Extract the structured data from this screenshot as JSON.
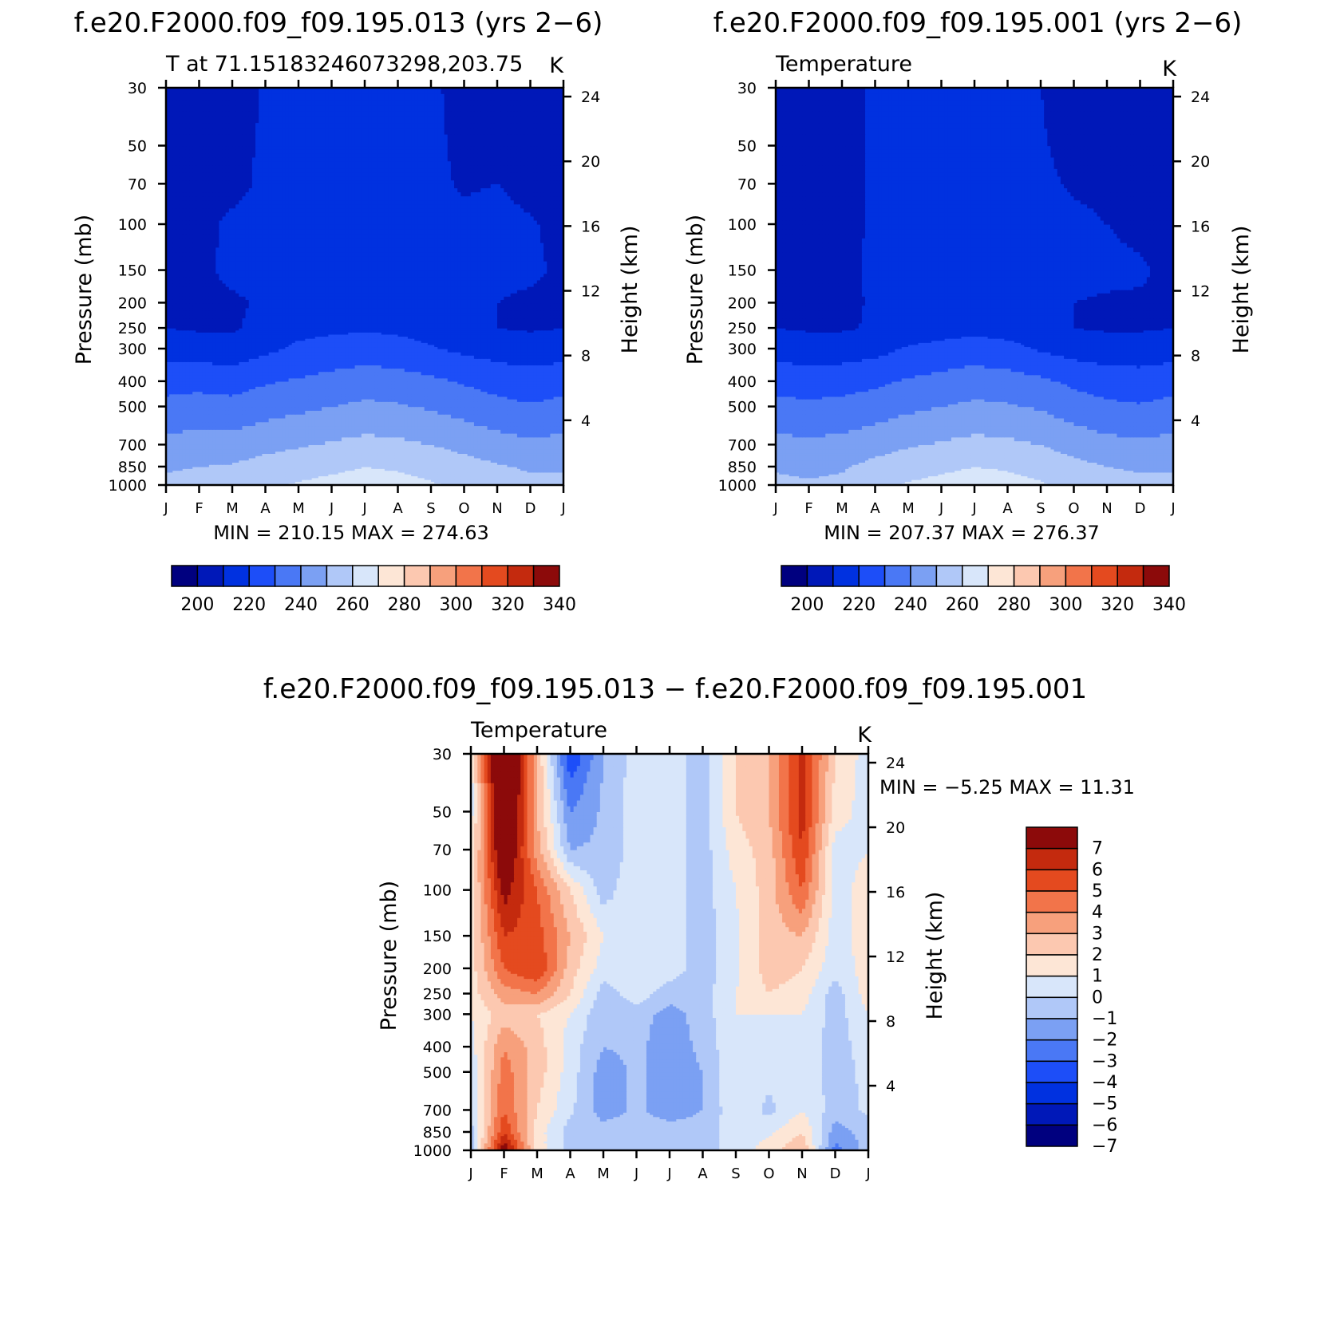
{
  "colors": {
    "abs_scale": [
      "#00007f",
      "#0018b8",
      "#0031e0",
      "#1d4ef8",
      "#4a78f5",
      "#7ba0f3",
      "#b0c8f8",
      "#d8e6fa",
      "#fde6d6",
      "#fcc8b0",
      "#f7a07c",
      "#f2744a",
      "#e44a1f",
      "#c42a0e",
      "#8c0a0a"
    ],
    "diff_scale": [
      "#00007f",
      "#0018b8",
      "#0031e0",
      "#1d4ef8",
      "#4a78f5",
      "#7ba0f3",
      "#b0c8f8",
      "#d8e6fa",
      "#fde6d6",
      "#fcc8b0",
      "#f7a07c",
      "#f2744a",
      "#e44a1f",
      "#c42a0e",
      "#8c0a0a"
    ]
  },
  "panels": {
    "p1": {
      "header": "f.e20.F2000.f09_f09.195.013 (yrs 2−6)",
      "left_label": "T at 71.15183246073298,203.75",
      "right_label": "K",
      "stats": "MIN =  210.15  MAX =  274.63",
      "y_title": "Pressure (mb)",
      "y2_title": "Height (km)"
    },
    "p2": {
      "header": "f.e20.F2000.f09_f09.195.001 (yrs 2−6)",
      "left_label": "Temperature",
      "right_label": "K",
      "stats": "MIN =  207.37  MAX =  276.37",
      "y_title": "Pressure (mb)",
      "y2_title": "Height (km)"
    },
    "p3": {
      "header": "f.e20.F2000.f09_f09.195.013 − f.e20.F2000.f09_f09.195.001",
      "left_label": "Temperature",
      "right_label": "K",
      "stats": "MIN =   −5.25  MAX =   11.31",
      "y_title": "Pressure (mb)",
      "y2_title": "Height (km)"
    }
  },
  "chart_data": [
    {
      "type": "heatmap",
      "title": "f.e20.F2000.f09_f09.195.013 (yrs 2−6)",
      "subtitle": "T at 71.15183246073298,203.75",
      "units": "K",
      "x_tick_labels": [
        "J",
        "F",
        "M",
        "A",
        "M",
        "J",
        "J",
        "A",
        "S",
        "O",
        "N",
        "D",
        "J"
      ],
      "pressure_levels": [
        1000,
        850,
        700,
        500,
        400,
        300,
        250,
        200,
        150,
        100,
        70,
        50,
        30
      ],
      "pressure_tick_labels": [
        "1000",
        "850",
        "700",
        "500",
        "400",
        "300",
        "250",
        "200",
        "150",
        "100",
        "70",
        "50",
        "30"
      ],
      "height_ticks": [
        4,
        8,
        12,
        16,
        20,
        24
      ],
      "contour_levels": [
        200,
        210,
        220,
        230,
        240,
        250,
        260,
        270,
        280,
        290,
        300,
        310,
        320,
        330,
        340
      ],
      "colorbar_labels": [
        "200",
        "220",
        "240",
        "260",
        "280",
        "300",
        "320",
        "340"
      ],
      "min": 210.15,
      "max": 274.63,
      "values": [
        [
          262,
          263,
          264,
          268,
          271,
          273,
          274,
          273,
          271,
          268,
          264,
          262,
          262
        ],
        [
          259,
          260,
          261,
          264,
          266,
          268,
          270,
          269,
          267,
          264,
          261,
          259,
          259
        ],
        [
          253,
          254,
          254,
          257,
          259,
          261,
          263,
          262,
          260,
          257,
          254,
          252,
          253
        ],
        [
          243,
          244,
          243,
          246,
          248,
          250,
          252,
          251,
          249,
          246,
          243,
          241,
          243
        ],
        [
          236,
          237,
          236,
          239,
          241,
          243,
          245,
          244,
          242,
          239,
          236,
          234,
          236
        ],
        [
          226,
          225,
          224,
          228,
          232,
          234,
          235,
          234,
          231,
          228,
          226,
          225,
          226
        ],
        [
          220,
          219,
          219,
          223,
          227,
          228,
          229,
          228,
          226,
          222,
          220,
          219,
          220
        ],
        [
          218,
          218,
          218,
          222,
          225,
          226,
          226,
          225,
          224,
          221,
          220,
          218,
          218
        ],
        [
          217,
          217,
          223,
          224,
          225,
          225,
          225,
          225,
          224,
          223,
          223,
          222,
          218
        ],
        [
          216,
          217,
          222,
          223,
          224,
          224,
          224,
          224,
          223,
          222,
          223,
          221,
          217
        ],
        [
          216,
          216,
          217,
          222,
          224,
          224,
          224,
          224,
          222,
          219,
          220,
          217,
          216
        ],
        [
          215,
          215,
          216,
          222,
          224,
          224,
          224,
          224,
          222,
          218,
          218,
          216,
          215
        ],
        [
          214,
          214,
          214,
          221,
          224,
          224,
          224,
          224,
          222,
          216,
          215,
          214,
          214
        ]
      ]
    },
    {
      "type": "heatmap",
      "title": "f.e20.F2000.f09_f09.195.001 (yrs 2−6)",
      "subtitle": "Temperature",
      "units": "K",
      "x_tick_labels": [
        "J",
        "F",
        "M",
        "A",
        "M",
        "J",
        "J",
        "A",
        "S",
        "O",
        "N",
        "D",
        "J"
      ],
      "pressure_levels": [
        1000,
        850,
        700,
        500,
        400,
        300,
        250,
        200,
        150,
        100,
        70,
        50,
        30
      ],
      "pressure_tick_labels": [
        "1000",
        "850",
        "700",
        "500",
        "400",
        "300",
        "250",
        "200",
        "150",
        "100",
        "70",
        "50",
        "30"
      ],
      "height_ticks": [
        4,
        8,
        12,
        16,
        20,
        24
      ],
      "contour_levels": [
        200,
        210,
        220,
        230,
        240,
        250,
        260,
        270,
        280,
        290,
        300,
        310,
        320,
        330,
        340
      ],
      "colorbar_labels": [
        "200",
        "220",
        "240",
        "260",
        "280",
        "300",
        "320",
        "340"
      ],
      "min": 207.37,
      "max": 276.37,
      "values": [
        [
          262,
          261,
          262,
          267,
          271,
          273,
          275,
          273,
          271,
          267,
          263,
          262,
          262
        ],
        [
          259,
          258,
          259,
          263,
          266,
          268,
          270,
          269,
          267,
          263,
          260,
          259,
          259
        ],
        [
          253,
          252,
          253,
          256,
          259,
          261,
          263,
          262,
          260,
          256,
          253,
          252,
          253
        ],
        [
          243,
          242,
          243,
          245,
          248,
          250,
          252,
          251,
          249,
          245,
          242,
          241,
          243
        ],
        [
          236,
          235,
          236,
          238,
          241,
          243,
          245,
          244,
          242,
          238,
          235,
          234,
          236
        ],
        [
          226,
          225,
          225,
          227,
          231,
          233,
          235,
          233,
          229,
          226,
          225,
          225,
          226
        ],
        [
          220,
          219,
          219,
          221,
          225,
          226,
          227,
          226,
          224,
          220,
          219,
          219,
          220
        ],
        [
          219,
          218,
          218,
          221,
          224,
          225,
          225,
          225,
          224,
          220,
          219,
          219,
          219
        ],
        [
          218,
          217,
          217,
          222,
          224,
          224,
          224,
          224,
          223,
          222,
          222,
          221,
          218
        ],
        [
          217,
          216,
          216,
          222,
          224,
          224,
          224,
          224,
          223,
          222,
          220,
          218,
          217
        ],
        [
          216,
          213,
          215,
          222,
          224,
          224,
          224,
          224,
          222,
          219,
          218,
          216,
          216
        ],
        [
          215,
          212,
          215,
          222,
          224,
          224,
          224,
          224,
          221,
          217,
          216,
          215,
          215
        ],
        [
          214,
          211,
          214,
          222,
          224,
          224,
          224,
          224,
          220,
          215,
          214,
          214,
          214
        ]
      ]
    },
    {
      "type": "heatmap",
      "title": "f.e20.F2000.f09_f09.195.013 − f.e20.F2000.f09_f09.195.001",
      "subtitle": "Temperature",
      "units": "K",
      "x_tick_labels": [
        "J",
        "F",
        "M",
        "A",
        "M",
        "J",
        "J",
        "A",
        "S",
        "O",
        "N",
        "D",
        "J"
      ],
      "pressure_levels": [
        1000,
        850,
        700,
        500,
        400,
        300,
        250,
        200,
        150,
        100,
        70,
        50,
        30
      ],
      "pressure_tick_labels": [
        "1000",
        "850",
        "700",
        "500",
        "400",
        "300",
        "250",
        "200",
        "150",
        "100",
        "70",
        "50",
        "30"
      ],
      "height_ticks": [
        4,
        8,
        12,
        16,
        20,
        24
      ],
      "contour_levels": [
        -7,
        -6,
        -5,
        -4,
        -3,
        -2,
        -1,
        0,
        1,
        2,
        3,
        4,
        5,
        6,
        7
      ],
      "colorbar_labels": [
        "7",
        "6",
        "5",
        "4",
        "3",
        "2",
        "1",
        "0",
        "−1",
        "−2",
        "−3",
        "−4",
        "−5",
        "−6",
        "−7"
      ],
      "min": -5.25,
      "max": 11.31,
      "values": [
        [
          -0.5,
          8.0,
          1.5,
          -0.5,
          -0.8,
          -0.8,
          -0.7,
          -0.6,
          0.5,
          1.5,
          3.0,
          -2.5,
          -0.5
        ],
        [
          -0.5,
          6.0,
          1.5,
          -0.5,
          -0.5,
          -0.5,
          -0.5,
          -0.5,
          0.5,
          0.8,
          2.0,
          -1.5,
          -0.5
        ],
        [
          0.2,
          5.0,
          2.0,
          0.2,
          -1.5,
          -0.8,
          -1.5,
          -1.0,
          0.8,
          -0.3,
          1.0,
          -0.5,
          0.2
        ],
        [
          0.3,
          4.5,
          2.5,
          0.5,
          -1.5,
          -0.8,
          -1.5,
          -1.0,
          1.0,
          0.3,
          0.8,
          -0.5,
          0.3
        ],
        [
          0.5,
          4.0,
          2.5,
          0.5,
          -1.0,
          -0.8,
          -1.5,
          -0.8,
          1.0,
          0.5,
          0.8,
          -0.5,
          0.5
        ],
        [
          1.0,
          2.5,
          2.0,
          1.0,
          -0.8,
          -0.5,
          -1.5,
          -0.5,
          1.0,
          1.0,
          1.0,
          -0.5,
          1.0
        ],
        [
          1.5,
          3.5,
          4.0,
          2.0,
          -0.5,
          0.5,
          -0.5,
          -0.5,
          1.0,
          2.0,
          1.5,
          -0.5,
          1.5
        ],
        [
          1.5,
          5.0,
          6.0,
          2.5,
          0.5,
          0.8,
          0.5,
          -0.5,
          0.8,
          2.5,
          2.0,
          0.3,
          1.5
        ],
        [
          1.5,
          6.0,
          5.5,
          3.0,
          1.0,
          0.8,
          0.5,
          -0.5,
          0.8,
          2.5,
          3.0,
          0.5,
          1.5
        ],
        [
          1.5,
          7.5,
          5.0,
          2.0,
          -0.5,
          0.8,
          0.5,
          -0.5,
          1.0,
          2.5,
          5.0,
          0.5,
          1.5
        ],
        [
          1.0,
          9.0,
          3.5,
          -1.0,
          -0.8,
          0.5,
          0.5,
          -0.5,
          1.5,
          2.5,
          6.0,
          0.5,
          1.0
        ],
        [
          0.5,
          10.0,
          3.0,
          -2.0,
          -0.8,
          0.5,
          0.5,
          -0.5,
          2.0,
          3.0,
          6.5,
          1.5,
          0.5
        ],
        [
          0.5,
          11.0,
          3.0,
          -4.0,
          -1.0,
          0.5,
          0.5,
          -0.5,
          2.0,
          3.0,
          6.5,
          2.0,
          0.5
        ]
      ]
    }
  ]
}
